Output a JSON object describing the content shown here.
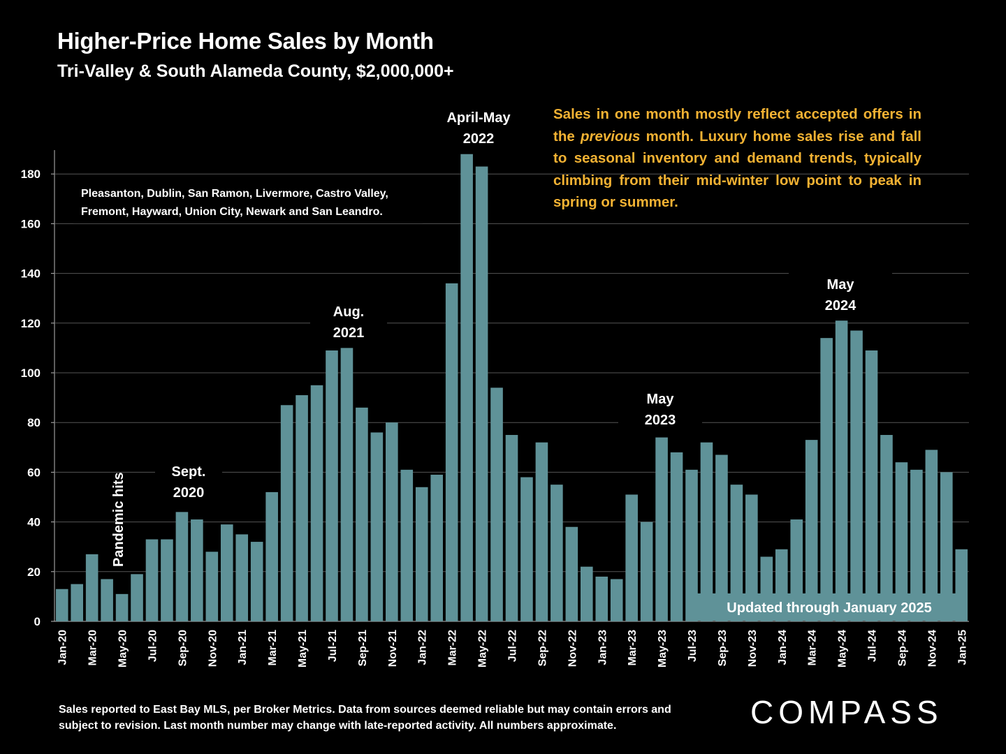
{
  "title": "Higher-Price Home Sales by Month",
  "subtitle": "Tri-Valley & South Alameda County, $2,000,000+",
  "note": {
    "before": "Sales in one month mostly reflect accepted offers in the ",
    "emphasis": "previous",
    "after": " month. Luxury home sales rise and fall to seasonal inventory and demand trends, typically climbing from their mid-winter low point to peak in spring or summer."
  },
  "footer": "Sales reported to East Bay MLS, per Broker Metrics. Data from sources deemed reliable but may contain errors and subject to revision. Last month number may change with late-reported activity. All numbers approximate.",
  "logo": "COMPASS",
  "colors": {
    "bar": "#5f9298",
    "note": "#f2b233",
    "background": "#000000",
    "grid": "#555555"
  },
  "chart_data": {
    "type": "bar",
    "title": "Higher-Price Home Sales by Month",
    "ylim": [
      0,
      190
    ],
    "yticks": [
      0,
      20,
      40,
      60,
      80,
      100,
      120,
      140,
      160,
      180
    ],
    "grid": true,
    "categories": [
      "Jan-20",
      "Feb-20",
      "Mar-20",
      "Apr-20",
      "May-20",
      "Jun-20",
      "Jul-20",
      "Aug-20",
      "Sep-20",
      "Oct-20",
      "Nov-20",
      "Dec-20",
      "Jan-21",
      "Feb-21",
      "Mar-21",
      "Apr-21",
      "May-21",
      "Jun-21",
      "Jul-21",
      "Aug-21",
      "Sep-21",
      "Oct-21",
      "Nov-21",
      "Dec-21",
      "Jan-22",
      "Feb-22",
      "Mar-22",
      "Apr-22",
      "May-22",
      "Jun-22",
      "Jul-22",
      "Aug-22",
      "Sep-22",
      "Oct-22",
      "Nov-22",
      "Dec-22",
      "Jan-23",
      "Feb-23",
      "Mar-23",
      "Apr-23",
      "May-23",
      "Jun-23",
      "Jul-23",
      "Aug-23",
      "Sep-23",
      "Oct-23",
      "Nov-23",
      "Dec-23",
      "Jan-24",
      "Feb-24",
      "Mar-24",
      "Apr-24",
      "May-24",
      "Jun-24",
      "Jul-24",
      "Aug-24",
      "Sep-24",
      "Oct-24",
      "Nov-24",
      "Dec-24",
      "Jan-25"
    ],
    "values": [
      13,
      15,
      27,
      17,
      11,
      19,
      33,
      33,
      44,
      41,
      28,
      39,
      35,
      32,
      52,
      87,
      91,
      95,
      109,
      110,
      86,
      76,
      80,
      61,
      54,
      59,
      136,
      188,
      183,
      94,
      75,
      58,
      72,
      55,
      38,
      22,
      18,
      17,
      51,
      40,
      74,
      68,
      61,
      72,
      67,
      55,
      51,
      26,
      29,
      41,
      73,
      114,
      121,
      117,
      109,
      75,
      64,
      61,
      69,
      60,
      29
    ],
    "xtick_labels": [
      "Jan-20",
      "Mar-20",
      "May-20",
      "Jul-20",
      "Sep-20",
      "Nov-20",
      "Jan-21",
      "Mar-21",
      "May-21",
      "Jul-21",
      "Sep-21",
      "Nov-21",
      "Jan-22",
      "Mar-22",
      "May-22",
      "Jul-22",
      "Sep-22",
      "Nov-22",
      "Jan-23",
      "Mar-23",
      "May-23",
      "Jul-23",
      "Sep-23",
      "Nov-23",
      "Jan-24",
      "Mar-24",
      "May-24",
      "Jul-24",
      "Sep-24",
      "Nov-24",
      "Jan-25"
    ],
    "annotations": {
      "cities": [
        "Pleasanton, Dublin, San Ramon, Livermore, Castro Valley,",
        "Fremont, Hayward, Union City, Newark and San Leandro."
      ],
      "pandemic": "Pandemic hits",
      "sept2020": [
        "Sept.",
        "2020"
      ],
      "aug2021": [
        "Aug.",
        "2021"
      ],
      "aprmay2022": [
        "April-May",
        "2022"
      ],
      "may2023": [
        "May",
        "2023"
      ],
      "may2024": [
        "May",
        "2024"
      ],
      "updated": "Updated through January 2025"
    }
  }
}
